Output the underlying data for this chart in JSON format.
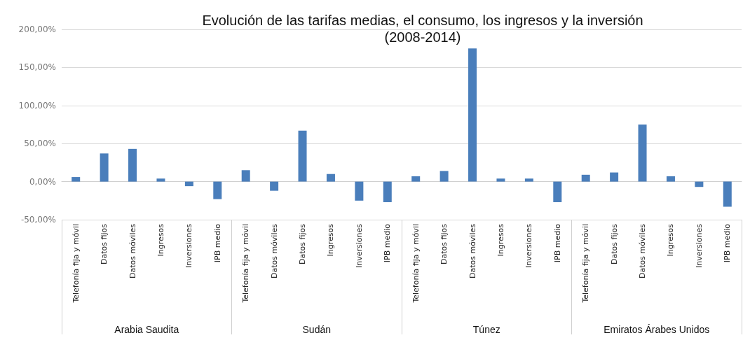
{
  "chart_data": {
    "type": "bar",
    "title": "Evolución de las tarifas medias, el consumo, los ingresos y la inversión",
    "subtitle": "(2008-2014)",
    "categories": [
      "Telefonía fija y móvil",
      "Datos fijos",
      "Datos móviles",
      "Ingresos",
      "Inversiones",
      "IPB medio",
      "Telefonía fija y móvil",
      "Datos móviles",
      "Datos fijos",
      "Ingresos",
      "Inversiones",
      "IPB medio",
      "Telefonía fija y móvil",
      "Datos fijos",
      "Datos móviles",
      "Ingresos",
      "Inversiones",
      "IPB medio",
      "Telefonía fija y móvil",
      "Datos fijos",
      "Datos móviles",
      "Ingresos",
      "Inversiones",
      "IPB medio"
    ],
    "values": [
      6,
      37,
      43,
      4,
      -6,
      -23,
      15,
      -12,
      67,
      10,
      -25,
      -27,
      7,
      14,
      175,
      4,
      4,
      -27,
      9,
      12,
      75,
      7,
      -7,
      -33
    ],
    "color": "#4a7ebb",
    "annotations": [
      "Arabia Saudita",
      "Sudán",
      "Túnez",
      "Emiratos Árabes Unidos"
    ],
    "ylim": [
      -50,
      200
    ],
    "yticks": [
      {
        "value": -50,
        "label": "-50,00%"
      },
      {
        "value": 0,
        "label": "0,00%"
      },
      {
        "value": 50,
        "label": "50,00%"
      },
      {
        "value": 100,
        "label": "100,00%"
      },
      {
        "value": 150,
        "label": "150,00%"
      },
      {
        "value": 200,
        "label": "200,00%"
      }
    ],
    "grid": "y"
  }
}
